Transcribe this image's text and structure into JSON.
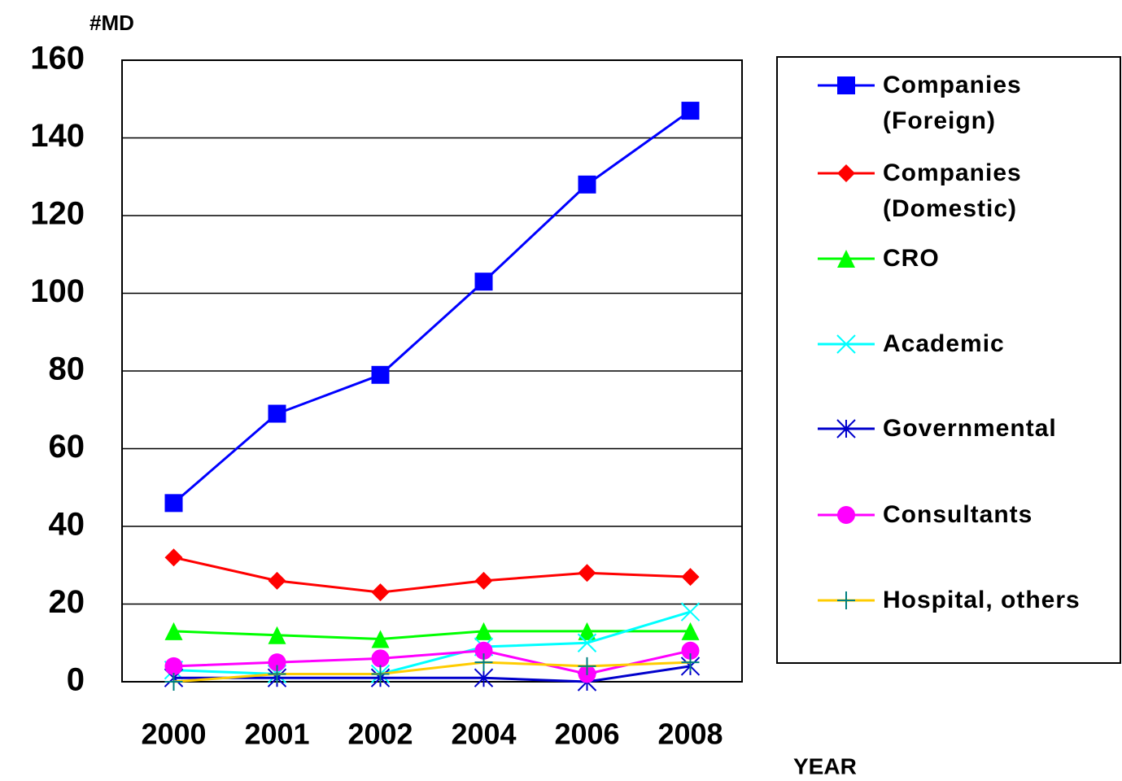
{
  "chart_data": {
    "type": "line",
    "y_label": "#MD",
    "x_label": "YEAR",
    "categories": [
      "2000",
      "2001",
      "2002",
      "2004",
      "2006",
      "2008"
    ],
    "ylim": [
      0,
      160
    ],
    "yticks": [
      0,
      20,
      40,
      60,
      80,
      100,
      120,
      140,
      160
    ],
    "grid": true,
    "legend": "right",
    "series": [
      {
        "name": "Companies (Foreign)",
        "color": "#0000ff",
        "marker": "square",
        "values": [
          46,
          69,
          79,
          103,
          128,
          147
        ]
      },
      {
        "name": "Companies (Domestic)",
        "color": "#ff0000",
        "marker": "diamond",
        "values": [
          32,
          26,
          23,
          26,
          28,
          27
        ]
      },
      {
        "name": "CRO",
        "color": "#00ff00",
        "marker": "triangle",
        "values": [
          13,
          12,
          11,
          13,
          13,
          13
        ]
      },
      {
        "name": "Academic",
        "color": "#00ffff",
        "marker": "x",
        "values": [
          3,
          2,
          2,
          9,
          10,
          18
        ]
      },
      {
        "name": "Governmental",
        "color": "#0000cc",
        "marker": "asterisk",
        "values": [
          1,
          1,
          1,
          1,
          0,
          4
        ]
      },
      {
        "name": "Consultants",
        "color": "#ff00ff",
        "marker": "circle",
        "values": [
          4,
          5,
          6,
          8,
          2,
          8
        ]
      },
      {
        "name": "Hospital, others",
        "color": "#ffcc00",
        "marker": "plus",
        "marker_color": "#008080",
        "values": [
          0,
          2,
          2,
          5,
          4,
          5
        ]
      }
    ]
  }
}
